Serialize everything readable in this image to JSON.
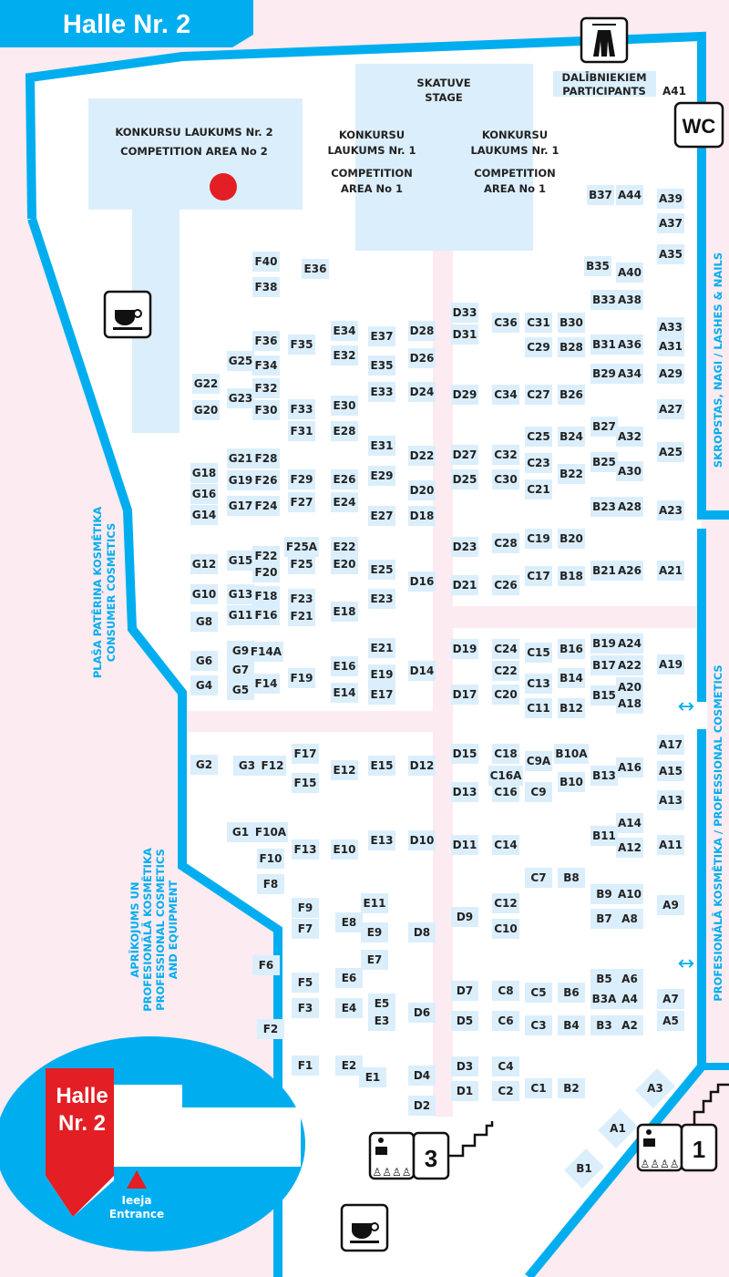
{
  "title": "Halle Nr. 2",
  "colors": {
    "wall": "#00aeef",
    "booth": "#dbeefb",
    "outside": "#fcebf0",
    "marker": "#e31e24"
  },
  "areas": {
    "competition_2": [
      "KONKURSU LAUKUMS Nr. 2",
      "COMPETITION AREA No 2"
    ],
    "stage": [
      "SKATUVE",
      "STAGE"
    ],
    "competition_1_left": [
      "KONKURSU",
      "LAUKUMS Nr. 1",
      "COMPETITION",
      "AREA No 1"
    ],
    "competition_1_right": [
      "KONKURSU",
      "LAUKUMS Nr. 1",
      "COMPETITION",
      "AREA No 1"
    ],
    "participants": [
      "DALĪBNIEKIEM",
      "PARTICIPANTS"
    ]
  },
  "zones": {
    "lashes_nails": "SKROPSTAS, NAGI / LASHES & NAILS",
    "professional": "PROFESIONĀLĀ KOSMĒTIKA / PROFESSIONAL COSMETICS",
    "consumer": [
      "PLAŠA PATĒRIŅA KOSMĒTIKA",
      "CONSUMER COSMETICS"
    ],
    "equipment": [
      "APRĪKOJUMS UN",
      "PROFESIONĀLĀ KOSMĒTIKA",
      "PROFESSIONAL COSMETICS",
      "AND EQUIPMENT"
    ]
  },
  "icons": {
    "wc": "WC",
    "cloakroom": "hanger-icon",
    "cafe": "coffee-cup-icon",
    "info_desk_3": "3",
    "info_desk_1": "1"
  },
  "locator": {
    "hall": [
      "Halle",
      "Nr. 2"
    ],
    "entrance": [
      "Ieeja",
      "Entrance"
    ]
  },
  "booths": {
    "G": [
      "G22",
      "G20",
      "G18",
      "G16",
      "G14",
      "G12",
      "G10",
      "G8",
      "G6",
      "G4",
      "G2",
      "G25",
      "G23",
      "G21",
      "G19",
      "G17",
      "G15",
      "G13",
      "G11",
      "G9",
      "G7",
      "G5",
      "G3",
      "G1"
    ],
    "F": [
      "F40",
      "F38",
      "F36",
      "F34",
      "F32",
      "F30",
      "F28",
      "F26",
      "F24",
      "F22",
      "F20",
      "F18",
      "F16",
      "F14A",
      "F14",
      "F12",
      "F10A",
      "F10",
      "F8",
      "F6",
      "F2",
      "F35",
      "F33",
      "F31",
      "F29",
      "F27",
      "F25A",
      "F25",
      "F23",
      "F21",
      "F19",
      "F17",
      "F15",
      "F13",
      "F9",
      "F7",
      "F5",
      "F3",
      "F1"
    ],
    "E": [
      "E36",
      "E34",
      "E32",
      "E30",
      "E28",
      "E26",
      "E24",
      "E22",
      "E20",
      "E18",
      "E16",
      "E14",
      "E12",
      "E10",
      "E8",
      "E6",
      "E4",
      "E2",
      "E37",
      "E35",
      "E33",
      "E31",
      "E29",
      "E27",
      "E25",
      "E23",
      "E21",
      "E19",
      "E17",
      "E15",
      "E13",
      "E11",
      "E9",
      "E7",
      "E5",
      "E3",
      "E1"
    ],
    "D": [
      "D28",
      "D26",
      "D24",
      "D22",
      "D20",
      "D18",
      "D16",
      "D14",
      "D12",
      "D10",
      "D8",
      "D6",
      "D4",
      "D2",
      "D33",
      "D31",
      "D29",
      "D27",
      "D25",
      "D23",
      "D21",
      "D19",
      "D17",
      "D15",
      "D13",
      "D11",
      "D9",
      "D7",
      "D5",
      "D3",
      "D1"
    ],
    "C": [
      "C36",
      "C34",
      "C32",
      "C30",
      "C28",
      "C26",
      "C24",
      "C22",
      "C20",
      "C18",
      "C16A",
      "C16",
      "C14",
      "C12",
      "C10",
      "C8",
      "C6",
      "C4",
      "C2",
      "C31",
      "C29",
      "C27",
      "C25",
      "C23",
      "C21",
      "C19",
      "C17",
      "C15",
      "C13",
      "C11",
      "C9A",
      "C9",
      "C7",
      "C5",
      "C3",
      "C1"
    ],
    "B": [
      "B30",
      "B28",
      "B26",
      "B24",
      "B22",
      "B20",
      "B18",
      "B16",
      "B14",
      "B12",
      "B10A",
      "B10",
      "B8",
      "B6",
      "B4",
      "B2",
      "B1",
      "B37",
      "B35",
      "B33",
      "B31",
      "B29",
      "B27",
      "B25",
      "B23",
      "B21",
      "B19",
      "B17",
      "B15",
      "B13",
      "B11",
      "B9",
      "B7",
      "B5",
      "B3A",
      "B3"
    ],
    "A": [
      "A44",
      "A40",
      "A38",
      "A36",
      "A34",
      "A32",
      "A30",
      "A28",
      "A26",
      "A24",
      "A22",
      "A20",
      "A18",
      "A16",
      "A14",
      "A12",
      "A10",
      "A8",
      "A6",
      "A4",
      "A2",
      "A3",
      "A1",
      "A41",
      "A39",
      "A37",
      "A35",
      "A33",
      "A31",
      "A29",
      "A27",
      "A25",
      "A23",
      "A21",
      "A19",
      "A17",
      "A15",
      "A13",
      "A11",
      "A9",
      "A7",
      "A5"
    ]
  }
}
